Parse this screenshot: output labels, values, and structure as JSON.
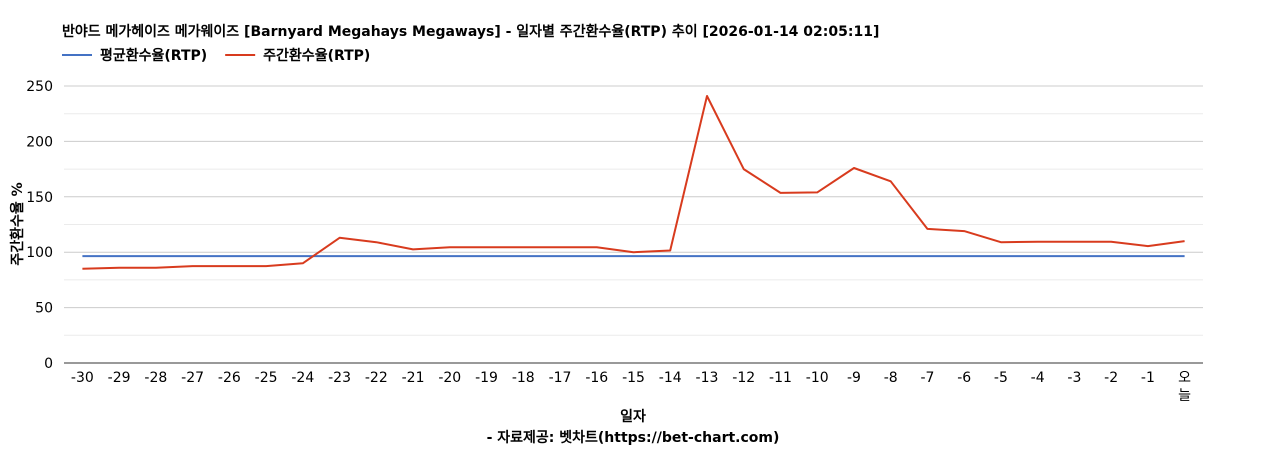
{
  "chart_data": {
    "type": "line",
    "title": "반야드 메가헤이즈 메가웨이즈 [Barnyard Megahays Megaways] - 일자별 주간환수율(RTP) 추이 [2026-01-14 02:05:11]",
    "xlabel": "일자",
    "ylabel": "주간환수율 %",
    "source": "- 자료제공: 벳차트(https://bet-chart.com)",
    "legend_position": "top-left",
    "grid": true,
    "ylim": [
      0,
      250
    ],
    "yticks": [
      0,
      50,
      100,
      150,
      200,
      250
    ],
    "categories": [
      "-30",
      "-29",
      "-28",
      "-27",
      "-26",
      "-25",
      "-24",
      "-23",
      "-22",
      "-21",
      "-20",
      "-19",
      "-18",
      "-17",
      "-16",
      "-15",
      "-14",
      "-13",
      "-12",
      "-11",
      "-10",
      "-9",
      "-8",
      "-7",
      "-6",
      "-5",
      "-4",
      "-3",
      "-2",
      "-1",
      "오늘"
    ],
    "series": [
      {
        "name": "평균환수율(RTP)",
        "color": "#4472c4",
        "values": [
          96.5,
          96.5,
          96.5,
          96.5,
          96.5,
          96.5,
          96.5,
          96.5,
          96.5,
          96.5,
          96.5,
          96.5,
          96.5,
          96.5,
          96.5,
          96.5,
          96.5,
          96.5,
          96.5,
          96.5,
          96.5,
          96.5,
          96.5,
          96.5,
          96.5,
          96.5,
          96.5,
          96.5,
          96.5,
          96.5,
          96.5
        ]
      },
      {
        "name": "주간환수율(RTP)",
        "color": "#d83b1e",
        "values": [
          85,
          86,
          86,
          87.5,
          87.5,
          87.5,
          90,
          113,
          109,
          102.5,
          104.5,
          104.5,
          104.5,
          104.5,
          104.5,
          100,
          101.5,
          241,
          175,
          153.5,
          154,
          176,
          164,
          121,
          119,
          109,
          109.5,
          109.5,
          109.5,
          105.5,
          110
        ]
      }
    ]
  }
}
